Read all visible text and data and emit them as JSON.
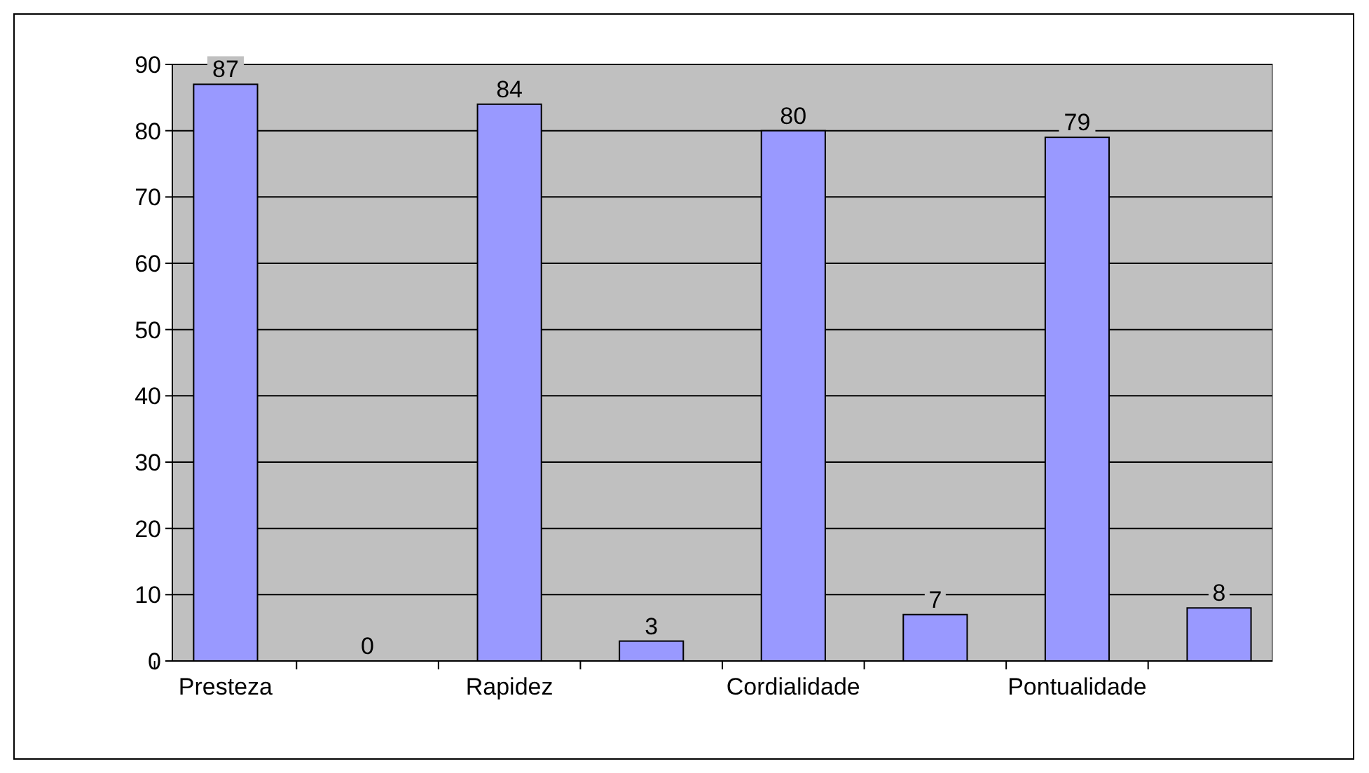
{
  "chart_data": {
    "type": "bar",
    "categories": [
      "Presteza",
      null,
      "Rapidez",
      null,
      "Cordialidade",
      null,
      "Pontualidade",
      null
    ],
    "values": [
      87,
      0,
      84,
      3,
      80,
      7,
      79,
      8
    ],
    "color": "#9999ff",
    "ylim": [
      0,
      90
    ],
    "yticks": [
      0,
      10,
      20,
      30,
      40,
      50,
      60,
      70,
      80,
      90
    ],
    "grid": "y",
    "data_labels": true
  }
}
